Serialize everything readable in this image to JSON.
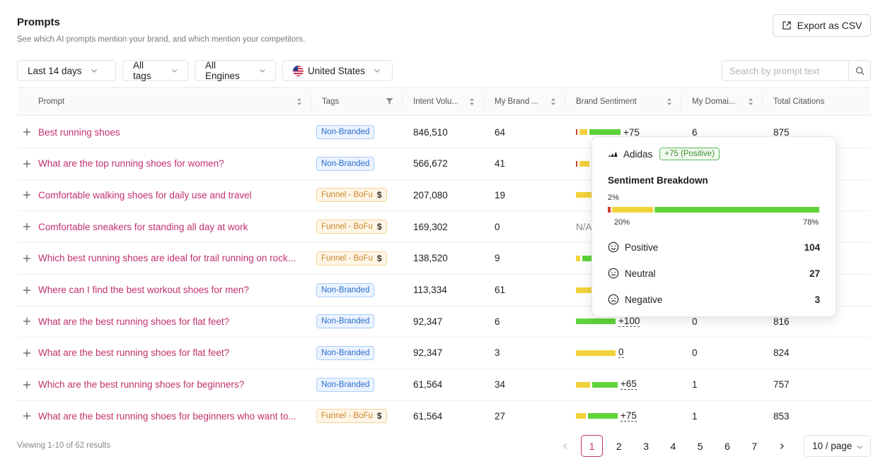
{
  "header": {
    "title": "Prompts",
    "subtitle": "See which AI prompts mention your brand, and which mention your competitors.",
    "export_label": "Export as CSV"
  },
  "filters": {
    "date_range": "Last 14 days",
    "tags": "All tags",
    "engines": "All Engines",
    "country": "United States",
    "search_placeholder": "Search by prompt text"
  },
  "columns": [
    "Prompt",
    "Tags",
    "Intent Volu...",
    "My Brand ...",
    "Brand Sentiment",
    "My Domai...",
    "Total Citations"
  ],
  "rows": [
    {
      "prompt": "Best running shoes",
      "tag": "Non-Branded",
      "tag_type": "blue",
      "volume": "846,510",
      "brand": "64",
      "sent": [
        0.02,
        0.2,
        0.78
      ],
      "score": "+75",
      "domain": "6",
      "citations": "875"
    },
    {
      "prompt": "What are the top running shoes for women?",
      "tag": "Non-Branded",
      "tag_type": "blue",
      "volume": "566,672",
      "brand": "41",
      "sent": [
        0.03,
        0.25,
        0.72
      ],
      "score": "",
      "domain": "",
      "citations": ""
    },
    {
      "prompt": "Comfortable walking shoes for daily use and travel",
      "tag": "Funnel - BoFu",
      "tag_type": "orange",
      "volume": "207,080",
      "brand": "19",
      "sent": [
        0,
        0.6,
        0.4
      ],
      "score": "",
      "domain": "",
      "citations": ""
    },
    {
      "prompt": "Comfortable sneakers for standing all day at work",
      "tag": "Funnel - BoFu",
      "tag_type": "orange",
      "volume": "169,302",
      "brand": "0",
      "sent": [],
      "score": "N/A",
      "domain": "",
      "citations": ""
    },
    {
      "prompt": "Which best running shoes are ideal for trail running on rock...",
      "tag": "Funnel - BoFu",
      "tag_type": "orange",
      "volume": "138,520",
      "brand": "9",
      "sent": [
        0,
        0.1,
        0.9
      ],
      "score": "",
      "domain": "",
      "citations": ""
    },
    {
      "prompt": "Where can I find the best workout shoes for men?",
      "tag": "Non-Branded",
      "tag_type": "blue",
      "volume": "113,334",
      "brand": "61",
      "sent": [
        0,
        0.6,
        0.4
      ],
      "score": "",
      "domain": "",
      "citations": ""
    },
    {
      "prompt": "What are the best running shoes for flat feet?",
      "tag": "Non-Branded",
      "tag_type": "blue",
      "volume": "92,347",
      "brand": "6",
      "sent": [
        0,
        0,
        1
      ],
      "score": "+100",
      "domain": "0",
      "citations": "816"
    },
    {
      "prompt": "What are the best running shoes for flat feet?",
      "tag": "Non-Branded",
      "tag_type": "blue",
      "volume": "92,347",
      "brand": "3",
      "sent": [
        0,
        1,
        0
      ],
      "score": "0",
      "domain": "0",
      "citations": "824"
    },
    {
      "prompt": "Which are the best running shoes for beginners?",
      "tag": "Non-Branded",
      "tag_type": "blue",
      "volume": "61,564",
      "brand": "34",
      "sent": [
        0,
        0.35,
        0.65
      ],
      "score": "+65",
      "domain": "1",
      "citations": "757"
    },
    {
      "prompt": "What are the best running shoes for beginners who want to...",
      "tag": "Funnel - BoFu",
      "tag_type": "orange",
      "volume": "61,564",
      "brand": "27",
      "sent": [
        0,
        0.25,
        0.75
      ],
      "score": "+75",
      "domain": "1",
      "citations": "853"
    }
  ],
  "tooltip": {
    "brand": "Adidas",
    "badge": "+75 (Positive)",
    "title": "Sentiment Breakdown",
    "pct_negative": "2%",
    "pct_neutral": "20%",
    "pct_positive": "78%",
    "breakdown": [
      0.02,
      0.2,
      0.78
    ],
    "items": [
      {
        "label": "Positive",
        "count": "104"
      },
      {
        "label": "Neutral",
        "count": "27"
      },
      {
        "label": "Negative",
        "count": "3"
      }
    ]
  },
  "footer": {
    "info": "Viewing 1-10 of 62 results",
    "pages": [
      "1",
      "2",
      "3",
      "4",
      "5",
      "6",
      "7"
    ],
    "page_size": "10 / page"
  }
}
